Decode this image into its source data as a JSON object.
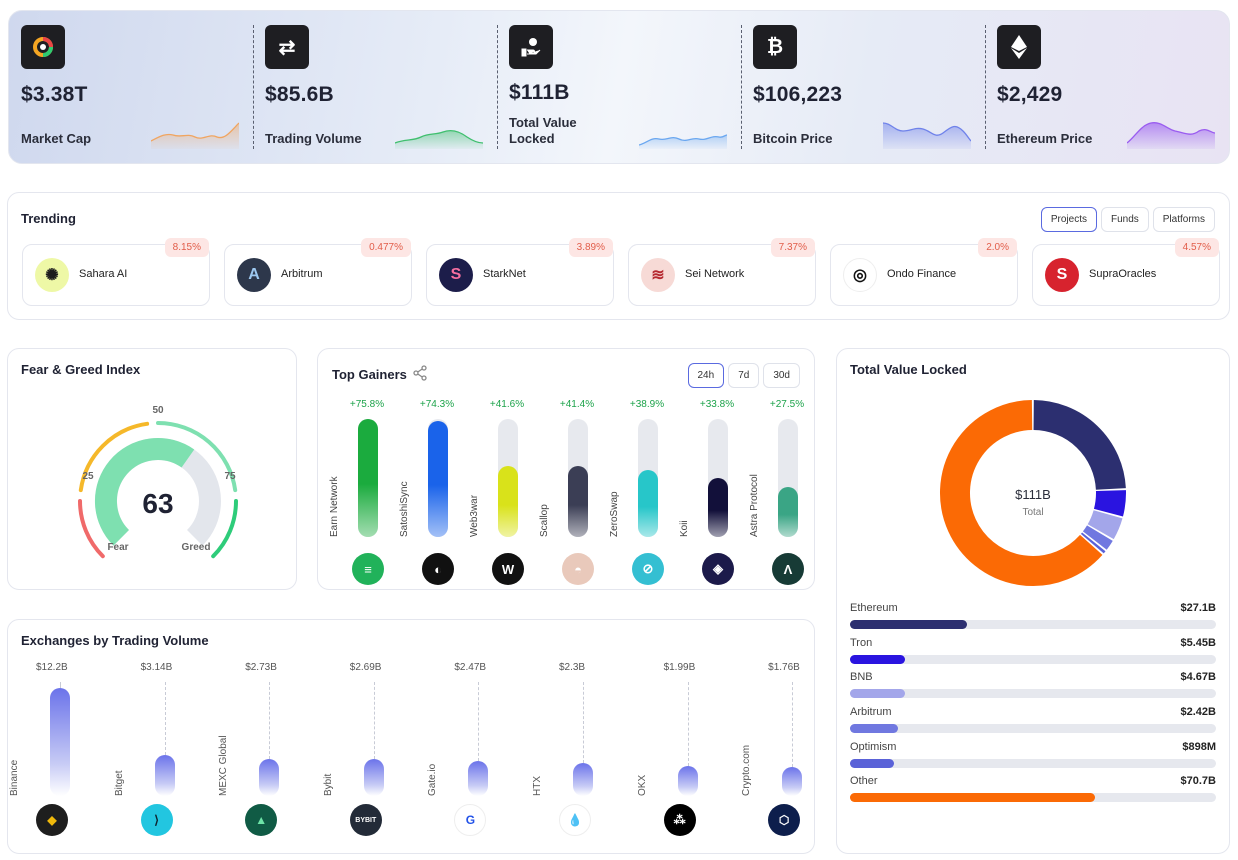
{
  "stats": [
    {
      "value": "$3.38T",
      "label": "Market Cap",
      "icon": "market-cap-icon",
      "color": "#f0a561"
    },
    {
      "value": "$85.6B",
      "label": "Trading Volume",
      "icon": "swap-arrows-icon",
      "color": "#3fbf6e"
    },
    {
      "value": "$111B",
      "label": "Total Value Locked",
      "icon": "hand-coin-icon",
      "color": "#6aa7f0"
    },
    {
      "value": "$106,223",
      "label": "Bitcoin Price",
      "icon": "bitcoin-icon",
      "color": "#6f82ea"
    },
    {
      "value": "$2,429",
      "label": "Ethereum Price",
      "icon": "ethereum-icon",
      "color": "#9a5cf0"
    }
  ],
  "trending": {
    "title": "Trending",
    "tabs": [
      "Projects",
      "Funds",
      "Platforms"
    ],
    "active_tab": "Projects",
    "items": [
      {
        "name": "Sahara AI",
        "pct": "8.15%",
        "logo_bg": "#eef8a6",
        "logo_fg": "#1d1d1d",
        "glyph": "✺"
      },
      {
        "name": "Arbitrum",
        "pct": "0.477%",
        "logo_bg": "#2d374b",
        "logo_fg": "#9dc8f0",
        "glyph": "A"
      },
      {
        "name": "StarkNet",
        "pct": "3.89%",
        "logo_bg": "#1c1d4a",
        "logo_fg": "#f56fa0",
        "glyph": "S"
      },
      {
        "name": "Sei Network",
        "pct": "7.37%",
        "logo_bg": "#f7dad6",
        "logo_fg": "#b5282f",
        "glyph": "≋"
      },
      {
        "name": "Ondo Finance",
        "pct": "2.0%",
        "logo_bg": "#ffffff",
        "logo_fg": "#111111",
        "glyph": "◎"
      },
      {
        "name": "SupraOracles",
        "pct": "4.57%",
        "logo_bg": "#d7232e",
        "logo_fg": "#ffffff",
        "glyph": "S"
      }
    ]
  },
  "fear_greed": {
    "title": "Fear & Greed Index",
    "value": "63",
    "score": 63,
    "ticks": [
      "25",
      "50",
      "75"
    ],
    "fear_label": "Fear",
    "greed_label": "Greed"
  },
  "top_gainers": {
    "title": "Top Gainers",
    "tabs": [
      "24h",
      "7d",
      "30d"
    ],
    "active_tab": "24h",
    "items": [
      {
        "name": "Earn Network",
        "pct": "+75.8%",
        "level": 1.0,
        "fill": "#1bab3e",
        "logo_bg": "#21b25a",
        "glyph": "≡"
      },
      {
        "name": "SatoshiSync",
        "pct": "+74.3%",
        "level": 0.98,
        "fill": "#1a63ea",
        "logo_bg": "#111111",
        "glyph": "◐"
      },
      {
        "name": "Web3war",
        "pct": "+41.6%",
        "level": 0.6,
        "fill": "#d9e21a",
        "logo_bg": "#111111",
        "glyph": "W"
      },
      {
        "name": "Scallop",
        "pct": "+41.4%",
        "level": 0.6,
        "fill": "#3b3e55",
        "logo_bg": "#e9c9bb",
        "glyph": "◓"
      },
      {
        "name": "ZeroSwap",
        "pct": "+38.9%",
        "level": 0.57,
        "fill": "#27c6c9",
        "logo_bg": "#34bfd2",
        "glyph": "⊘"
      },
      {
        "name": "Koii",
        "pct": "+33.8%",
        "level": 0.5,
        "fill": "#12103a",
        "logo_bg": "#1c1a4a",
        "glyph": "◈"
      },
      {
        "name": "Astra Protocol",
        "pct": "+27.5%",
        "level": 0.42,
        "fill": "#3aa585",
        "logo_bg": "#173b36",
        "glyph": "Λ"
      }
    ]
  },
  "exchanges": {
    "title": "Exchanges by Trading Volume",
    "items": [
      {
        "name": "Binance",
        "value": "$12.2B",
        "level": 1.0,
        "logo_bg": "#1e1e1e",
        "logo_fg": "#f0b90b",
        "glyph": "◆"
      },
      {
        "name": "Bitget",
        "value": "$3.14B",
        "level": 0.38,
        "logo_bg": "#22c6e0",
        "logo_fg": "#0e2430",
        "glyph": "⟩"
      },
      {
        "name": "MEXC Global",
        "value": "$2.73B",
        "level": 0.34,
        "logo_bg": "#105b45",
        "logo_fg": "#6ee4a8",
        "glyph": "▲"
      },
      {
        "name": "Bybit",
        "value": "$2.69B",
        "level": 0.34,
        "logo_bg": "#232b38",
        "logo_fg": "#ffffff",
        "glyph": "BYBIT"
      },
      {
        "name": "Gate.io",
        "value": "$2.47B",
        "level": 0.32,
        "logo_bg": "#ffffff",
        "logo_fg": "#2353e8",
        "glyph": "G"
      },
      {
        "name": "HTX",
        "value": "$2.3B",
        "level": 0.31,
        "logo_bg": "#ffffff",
        "logo_fg": "#1b4fd8",
        "glyph": "💧"
      },
      {
        "name": "OKX",
        "value": "$1.99B",
        "level": 0.28,
        "logo_bg": "#000000",
        "logo_fg": "#ffffff",
        "glyph": "⁂"
      },
      {
        "name": "Crypto.com",
        "value": "$1.76B",
        "level": 0.27,
        "logo_bg": "#0d1e4c",
        "logo_fg": "#ffffff",
        "glyph": "⬡"
      }
    ]
  },
  "tvl": {
    "title": "Total Value Locked",
    "center_value": "$111B",
    "center_label": "Total",
    "rows": [
      {
        "name": "Ethereum",
        "value": "$27.1B",
        "fraction": 0.32,
        "color": "#2c2f70"
      },
      {
        "name": "Tron",
        "value": "$5.45B",
        "fraction": 0.15,
        "color": "#2a14e0"
      },
      {
        "name": "BNB",
        "value": "$4.67B",
        "fraction": 0.15,
        "color": "#a3a6ea"
      },
      {
        "name": "Arbitrum",
        "value": "$2.42B",
        "fraction": 0.13,
        "color": "#7078e0"
      },
      {
        "name": "Optimism",
        "value": "$898M",
        "fraction": 0.12,
        "color": "#5a62d8"
      },
      {
        "name": "Other",
        "value": "$70.7B",
        "fraction": 0.67,
        "color": "#fb6a05"
      }
    ],
    "donut_values": [
      27.1,
      5.45,
      4.67,
      2.42,
      0.898,
      70.7
    ]
  }
}
